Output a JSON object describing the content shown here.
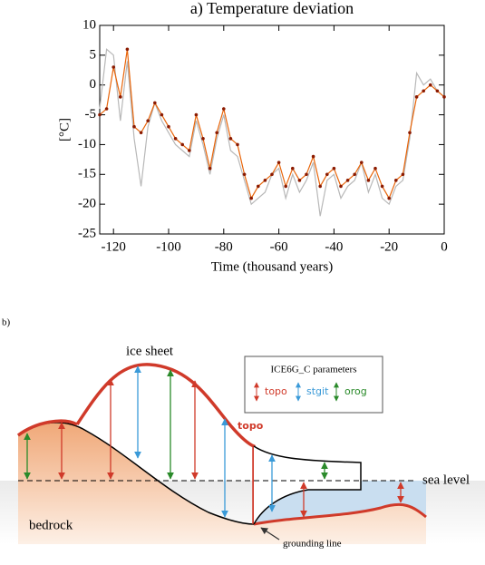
{
  "chart_data": {
    "type": "line",
    "title": "a) Temperature deviation",
    "xlabel": "Time (thousand years)",
    "ylabel": "[°C]",
    "xlim": [
      -125,
      0
    ],
    "ylim": [
      -25,
      10
    ],
    "xticks": [
      -120,
      -100,
      -80,
      -60,
      -40,
      -20,
      0
    ],
    "yticks": [
      -25,
      -20,
      -15,
      -10,
      -5,
      0,
      5,
      10
    ],
    "x": [
      -125,
      -122.5,
      -120,
      -117.5,
      -115,
      -112.5,
      -110,
      -107.5,
      -105,
      -102.5,
      -100,
      -97.5,
      -95,
      -92.5,
      -90,
      -87.5,
      -85,
      -82.5,
      -80,
      -77.5,
      -75,
      -72.5,
      -70,
      -67.5,
      -65,
      -62.5,
      -60,
      -57.5,
      -55,
      -52.5,
      -50,
      -47.5,
      -45,
      -42.5,
      -40,
      -37.5,
      -35,
      -32.5,
      -30,
      -27.5,
      -25,
      -22.5,
      -20,
      -17.5,
      -15,
      -12.5,
      -10,
      -7.5,
      -5,
      -2.5,
      0
    ],
    "series": [
      {
        "color": "#b8b8b8",
        "values": [
          -4,
          6,
          5,
          -6,
          4,
          -9,
          -17,
          -7,
          -3,
          -6,
          -8,
          -10,
          -11,
          -12,
          -6,
          -10,
          -15,
          -9,
          -5,
          -11,
          -12,
          -16,
          -20,
          -19,
          -18,
          -15,
          -14,
          -19,
          -15,
          -18,
          -16,
          -13,
          -22,
          -16,
          -15,
          -19,
          -17,
          -16,
          -13,
          -18,
          -15,
          -19,
          -20,
          -17,
          -16,
          -9,
          2,
          0,
          1,
          -1,
          -2
        ]
      },
      {
        "color": "#e8650a",
        "marker_color": "#8b1a00",
        "values": [
          -5,
          -4,
          3,
          -2,
          6,
          -7,
          -8,
          -6,
          -3,
          -5,
          -7,
          -9,
          -10,
          -11,
          -5,
          -9,
          -14,
          -8,
          -4,
          -9,
          -10,
          -15,
          -19,
          -17,
          -16,
          -15,
          -13,
          -17,
          -14,
          -16,
          -15,
          -12,
          -17,
          -15,
          -14,
          -17,
          -16,
          -15,
          -13,
          -16,
          -14,
          -17,
          -19,
          -16,
          -15,
          -8,
          -2,
          -1,
          0,
          -1,
          -2
        ]
      }
    ]
  },
  "diagram": {
    "label": "b)",
    "ice_sheet": "ice sheet",
    "legend_title": "ICE6G_C parameters",
    "legend": [
      "topo",
      "stgit",
      "orog"
    ],
    "topo_label": "topo",
    "sea_level": "sea level",
    "bedrock": "bedrock",
    "grounding_line": "grounding line"
  }
}
